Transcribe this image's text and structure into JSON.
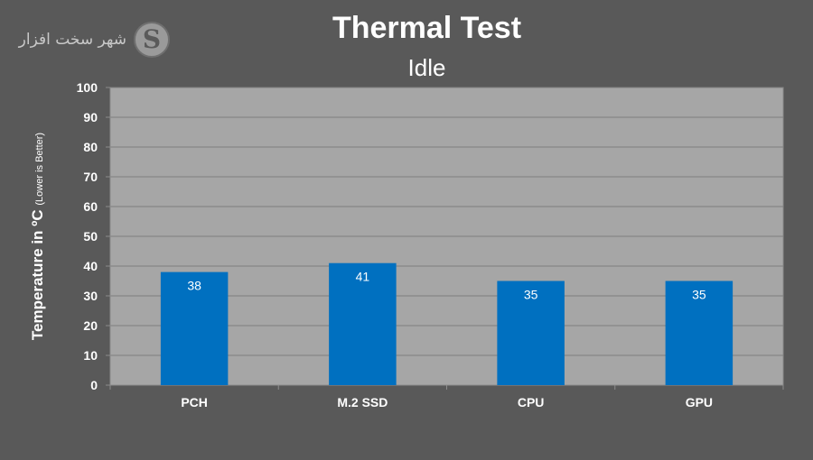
{
  "logo": {
    "text": "شهر سخت افزار",
    "letter": "S"
  },
  "chart_data": {
    "type": "bar",
    "title": "Thermal Test",
    "subtitle": "Idle",
    "ylabel": "Temperature in ºC",
    "ylabel_note": "(Lower is Better)",
    "xlabel": "",
    "categories": [
      "PCH",
      "M.2 SSD",
      "CPU",
      "GPU"
    ],
    "values": [
      38,
      41,
      35,
      35
    ],
    "ylim": [
      0,
      100
    ],
    "yticks": [
      0,
      10,
      20,
      30,
      40,
      50,
      60,
      70,
      80,
      90,
      100
    ],
    "grid": true,
    "colors": {
      "bar": "#0070c0",
      "plot_bg": "#a6a6a6",
      "page_bg": "#595959",
      "grid": "#7f7f7f",
      "text": "#ffffff"
    }
  }
}
